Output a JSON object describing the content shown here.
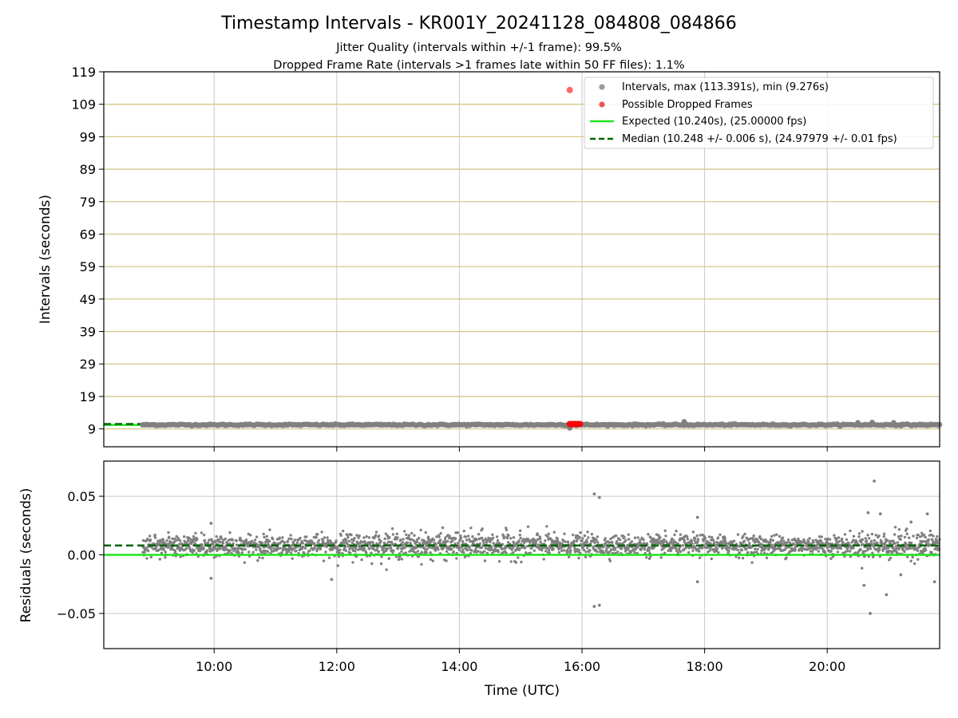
{
  "chart_data": [
    {
      "type": "scatter",
      "panel": "intervals",
      "title": "Timestamp Intervals - KR001Y_20241128_084808_084866",
      "subtitle_lines": [
        "Jitter Quality (intervals within +/-1 frame): 99.5%",
        "Dropped Frame Rate (intervals >1 frames late within 50 FF files): 1.1%"
      ],
      "xlabel": "",
      "ylabel": "Intervals (seconds)",
      "xlim": [
        "08:12",
        "21:50"
      ],
      "ylim": [
        3.5,
        119
      ],
      "yticks": [
        "9",
        "19",
        "29",
        "39",
        "49",
        "59",
        "69",
        "79",
        "89",
        "99",
        "109",
        "119"
      ],
      "horizontal_gridline_color": "#d4c88a",
      "grid": true,
      "legend_position": "top-right",
      "legend": [
        {
          "label": "Intervals, max (113.391s), min (9.276s)",
          "kind": "marker",
          "color": "#999999"
        },
        {
          "label": "Possible Dropped Frames",
          "kind": "marker",
          "color": "#ef5353"
        },
        {
          "label": "Expected (10.240s), (25.00000 fps)",
          "kind": "line",
          "color": "#1ee51e"
        },
        {
          "label": "Median (10.248 +/- 0.006 s), (24.97979 +/- 0.01 fps)",
          "kind": "dashed",
          "color": "#006400"
        }
      ],
      "series": [
        {
          "name": "Intervals, max (113.391s), min (9.276s)",
          "x_range": [
            "08:50",
            "21:50"
          ],
          "y_typical": 10.25,
          "y_min": 9.276,
          "y_max": 113.391,
          "color": "#808080"
        },
        {
          "name": "Possible Dropped Frames",
          "points": [
            {
              "x": "15:48",
              "y": 113.391
            },
            {
              "x": "15:48",
              "y": 10.5
            },
            {
              "x": "15:50",
              "y": 10.5
            },
            {
              "x": "15:52",
              "y": 10.5
            },
            {
              "x": "15:54",
              "y": 10.5
            },
            {
              "x": "15:56",
              "y": 10.5
            },
            {
              "x": "15:58",
              "y": 10.5
            }
          ],
          "color": "#ff0000"
        },
        {
          "name": "Expected (10.240s), (25.00000 fps)",
          "y": 10.24,
          "color": "#1ee51e"
        },
        {
          "name": "Median (10.248 +/- 0.006 s), (24.97979 +/- 0.01 fps)",
          "y": 10.248,
          "color": "#006400"
        }
      ]
    },
    {
      "type": "scatter",
      "panel": "residuals",
      "xlabel": "Time (UTC)",
      "ylabel": "Residuals (seconds)",
      "xlim": [
        "08:12",
        "21:50"
      ],
      "xticks": [
        "10:00",
        "12:00",
        "14:00",
        "16:00",
        "18:00",
        "20:00"
      ],
      "ylim": [
        -0.08,
        0.08
      ],
      "yticks": [
        "−0.05",
        "0.00",
        "0.05"
      ],
      "grid": true,
      "series": [
        {
          "name": "residuals",
          "x_range": [
            "08:50",
            "21:50"
          ],
          "y_center": 0.008,
          "y_spread": 0.008,
          "color": "#808080",
          "outliers": [
            {
              "x": "09:57",
              "y": -0.02
            },
            {
              "x": "09:57",
              "y": 0.027
            },
            {
              "x": "11:55",
              "y": -0.021
            },
            {
              "x": "16:12",
              "y": -0.044
            },
            {
              "x": "16:17",
              "y": -0.043
            },
            {
              "x": "16:12",
              "y": 0.052
            },
            {
              "x": "16:17",
              "y": 0.049
            },
            {
              "x": "17:53",
              "y": -0.023
            },
            {
              "x": "17:53",
              "y": 0.032
            },
            {
              "x": "20:36",
              "y": -0.026
            },
            {
              "x": "20:40",
              "y": 0.036
            },
            {
              "x": "20:42",
              "y": -0.05
            },
            {
              "x": "20:46",
              "y": 0.063
            },
            {
              "x": "20:52",
              "y": 0.035
            },
            {
              "x": "20:58",
              "y": -0.034
            },
            {
              "x": "21:12",
              "y": -0.017
            },
            {
              "x": "21:22",
              "y": 0.028
            },
            {
              "x": "21:38",
              "y": 0.035
            },
            {
              "x": "21:45",
              "y": -0.023
            }
          ]
        },
        {
          "name": "expected",
          "y": 0.0,
          "color": "#1ee51e"
        },
        {
          "name": "median",
          "y": 0.008,
          "color": "#006400"
        }
      ]
    }
  ]
}
